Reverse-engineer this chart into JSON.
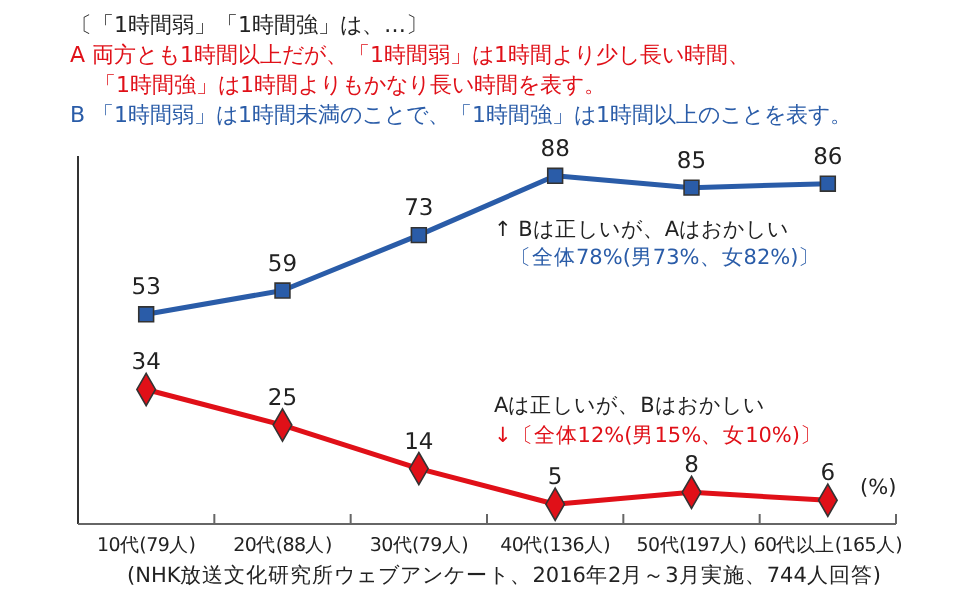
{
  "chart_data": {
    "type": "line",
    "title": "〔「1時間弱」「1時間強」は、…〕",
    "categories": [
      "10代(79人)",
      "20代(88人)",
      "30代(79人)",
      "40代(136人)",
      "50代(197人)",
      "60代以上(165人)"
    ],
    "series": [
      {
        "color": "#2a5ca8",
        "marker": "square",
        "values": [
          53,
          59,
          73,
          88,
          85,
          86
        ]
      },
      {
        "color": "#e01018",
        "marker": "diamond",
        "values": [
          34,
          25,
          14,
          5,
          8,
          6
        ]
      }
    ],
    "ylim": [
      0,
      93
    ],
    "data_labels": true,
    "annotations": [
      "A 両方とも1時間以上だが、「1時間弱」は1時間より少し長い時間、",
      "「1時間強」は1時間よりもかなり長い時間を表す。",
      "B 「1時間弱」は1時間未満のことで、「1時間強」は1時間以上のことを表す。",
      "↑ Bは正しいが、Aはおかしい",
      "〔全体78%(男73%、女82%)〕",
      "Aは正しいが、Bはおかしい",
      "↓〔全体12%(男15%、女10%)〕",
      "(%)",
      "(NHK放送文化研究所ウェブアンケート、2016年2月～3月実施、744人回答)"
    ]
  }
}
